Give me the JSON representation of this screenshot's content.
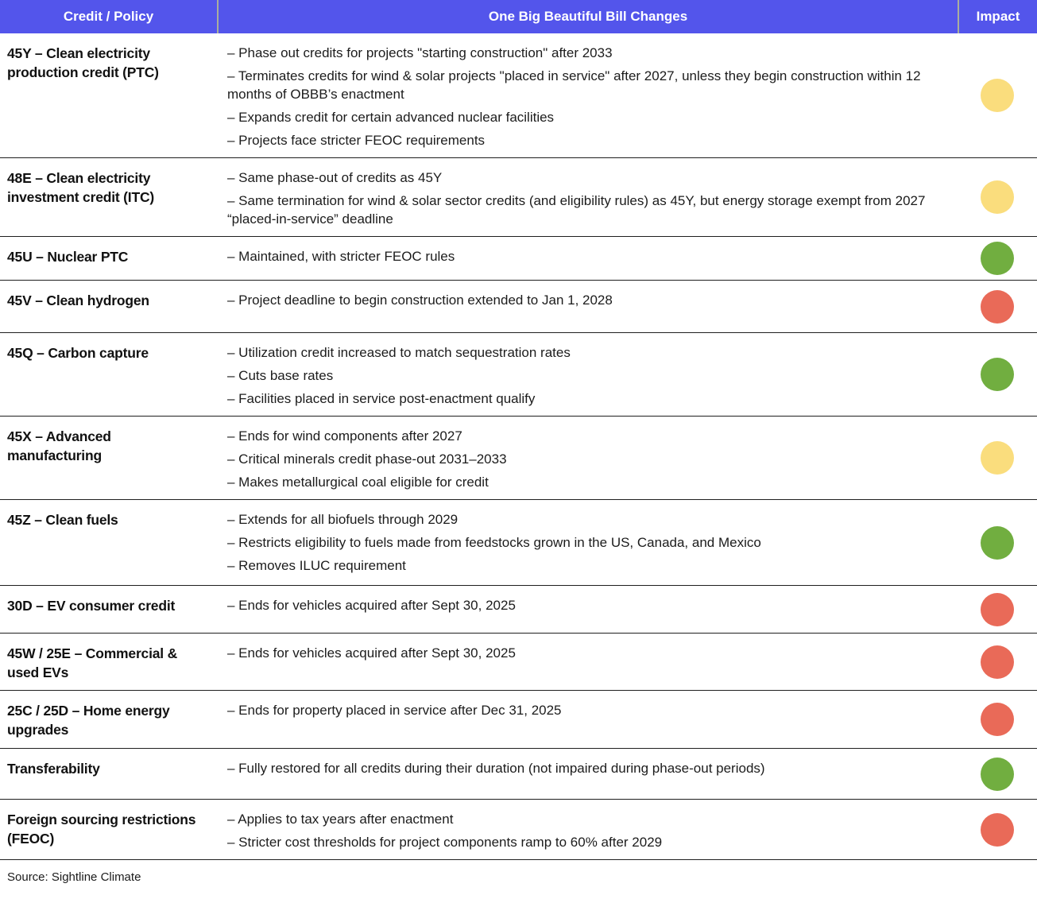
{
  "chart_data": {
    "type": "table",
    "columns": [
      "Credit / Policy",
      "One Big Beautiful Bill Changes",
      "Impact"
    ],
    "rows": [
      {
        "credit": "45Y – Clean electricity production credit (PTC)",
        "changes": [
          "– Phase out credits for projects \"starting construction\" after 2033",
          "– Terminates credits for wind & solar projects \"placed in service\" after 2027, unless they begin construction within 12 months of OBBB’s enactment",
          "– Expands credit for certain advanced nuclear facilities",
          "– Projects face stricter FEOC requirements"
        ],
        "impact": "mixed"
      },
      {
        "credit": "48E – Clean electricity investment credit (ITC)",
        "changes": [
          "– Same phase-out of credits as 45Y",
          "– Same termination for wind & solar sector credits (and eligibility rules) as 45Y, but energy storage exempt from 2027 “placed-in-service” deadline"
        ],
        "impact": "mixed"
      },
      {
        "credit": "45U – Nuclear PTC",
        "changes": [
          "– Maintained, with stricter FEOC rules"
        ],
        "impact": "positive"
      },
      {
        "credit": "45V – Clean hydrogen",
        "changes": [
          "– Project deadline to begin construction extended to Jan 1, 2028"
        ],
        "impact": "negative"
      },
      {
        "credit": "45Q – Carbon capture",
        "changes": [
          "– Utilization credit increased to match sequestration rates",
          "– Cuts base rates",
          "– Facilities placed in service post-enactment qualify"
        ],
        "impact": "positive"
      },
      {
        "credit": "45X – Advanced manufacturing",
        "changes": [
          "– Ends for wind components after 2027",
          "– Critical minerals credit phase-out 2031–2033",
          "– Makes metallurgical coal eligible for credit"
        ],
        "impact": "mixed"
      },
      {
        "credit": "45Z – Clean fuels",
        "changes": [
          "– Extends for all biofuels through 2029",
          "– Restricts eligibility to fuels made from feedstocks grown in the US, Canada, and Mexico",
          "– Removes ILUC requirement"
        ],
        "impact": "positive"
      },
      {
        "credit": "30D – EV consumer credit",
        "changes": [
          "– Ends for vehicles acquired after Sept 30, 2025"
        ],
        "impact": "negative"
      },
      {
        "credit": "45W / 25E – Commercial & used EVs",
        "changes": [
          "– Ends for vehicles acquired after Sept 30, 2025"
        ],
        "impact": "negative"
      },
      {
        "credit": "25C / 25D – Home energy upgrades",
        "changes": [
          "– Ends for property placed in service after Dec 31, 2025"
        ],
        "impact": "negative"
      },
      {
        "credit": "Transferability",
        "changes": [
          "– Fully restored for all credits during their duration (not impaired during phase-out periods)"
        ],
        "impact": "positive"
      },
      {
        "credit": "Foreign sourcing restrictions (FEOC)",
        "changes": [
          "– Applies to tax years after enactment",
          "– Stricter cost thresholds for project components ramp to 60% after 2029"
        ],
        "impact": "negative"
      }
    ],
    "impact_colors": {
      "positive": "#71AE40",
      "mixed": "#FADD7D",
      "negative": "#E96A58"
    },
    "header_bg_color": "#5355EB",
    "header_text_color": "#FFFFFF"
  },
  "source": "Source: Sightline Climate"
}
